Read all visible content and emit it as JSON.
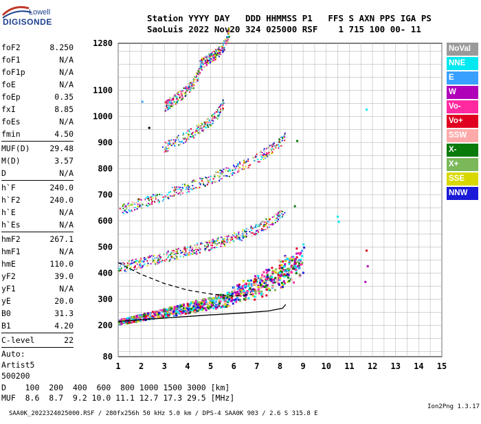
{
  "logo": {
    "line1": "Lowell",
    "line2": "DIGISONDE"
  },
  "header": {
    "line1": "Station YYYY DAY   DDD HHMMSS P1   FFS S AXN PPS IGA PS",
    "line2": "SaoLuis 2022 Nov20 324 025000 RSF    1 715 100 00- 11"
  },
  "params": [
    {
      "name": "foF2",
      "value": "8.250"
    },
    {
      "name": "foF1",
      "value": "N/A"
    },
    {
      "name": "foF1p",
      "value": "N/A"
    },
    {
      "name": "foE",
      "value": "N/A"
    },
    {
      "name": "foEp",
      "value": "0.35"
    },
    {
      "name": "fxI",
      "value": "8.85"
    },
    {
      "name": "foEs",
      "value": "N/A"
    },
    {
      "name": "fmin",
      "value": "4.50"
    },
    {
      "name": "MUF(D)",
      "value": "29.48"
    },
    {
      "name": "M(D)",
      "value": "3.57"
    },
    {
      "name": "D",
      "value": "N/A"
    },
    {
      "name": "h`F",
      "value": "240.0"
    },
    {
      "name": "h`F2",
      "value": "240.0"
    },
    {
      "name": "h`E",
      "value": "N/A"
    },
    {
      "name": "h`Es",
      "value": "N/A"
    },
    {
      "name": "hmF2",
      "value": "267.1"
    },
    {
      "name": "hmF1",
      "value": "N/A"
    },
    {
      "name": "hmE",
      "value": "110.0"
    },
    {
      "name": "yF2",
      "value": "39.0"
    },
    {
      "name": "yF1",
      "value": "N/A"
    },
    {
      "name": "yE",
      "value": "20.0"
    },
    {
      "name": "B0",
      "value": "31.3"
    },
    {
      "name": "B1",
      "value": "4.20"
    },
    {
      "name": "C-level",
      "value": "22"
    }
  ],
  "autoscaling": {
    "line1": "Auto:",
    "line2": "Artist5",
    "line3": "500200"
  },
  "footer": {
    "d_row": "D    100  200  400  600  800 1000 1500 3000 [km]",
    "muf_row": "MUF  8.6  8.7  9.2 10.0 11.1 12.7 17.3 29.5 [MHz]"
  },
  "bottom_line": "SAA0K_2022324025000.RSF / 280fx256h 50 kHz 5.0 km / DPS-4 SAA0K 903 / 2.6 S 315.8 E",
  "version": "Ion2Png 1.3.17",
  "legend": [
    {
      "label": "NoVal",
      "color": "#9a9a9a"
    },
    {
      "label": "NNE",
      "color": "#00e8f0"
    },
    {
      "label": "E",
      "color": "#3aa0ff"
    },
    {
      "label": "W",
      "color": "#b000b8"
    },
    {
      "label": "Vo-",
      "color": "#ff2aa0"
    },
    {
      "label": "Vo+",
      "color": "#e00020"
    },
    {
      "label": "SSW",
      "color": "#ffaaaa"
    },
    {
      "label": "X-",
      "color": "#0a7a0a"
    },
    {
      "label": "X+",
      "color": "#7ab85a"
    },
    {
      "label": "SSE",
      "color": "#d8d800"
    },
    {
      "label": "NNW",
      "color": "#1a1ad8"
    }
  ],
  "chart_data": {
    "type": "scatter",
    "xlim": [
      1,
      15
    ],
    "ylim": [
      80,
      1280
    ],
    "x_ticks": [
      "1",
      "2",
      "3",
      "4",
      "5",
      "6",
      "7",
      "8",
      "9",
      "10",
      "11",
      "12",
      "13",
      "14",
      "15"
    ],
    "y_ticks": [
      "80",
      "200",
      "300",
      "400",
      "500",
      "600",
      "700",
      "800",
      "900",
      "1000",
      "1100",
      "1280"
    ],
    "grid": true,
    "traces": [
      {
        "name": "O-trace (1st hop)",
        "x_start": 1.0,
        "x_end": 9.0,
        "y_start": 215,
        "y_end": 360
      },
      {
        "name": "2nd hop",
        "x_start": 1.0,
        "x_end": 8.2,
        "y_start": 420,
        "y_end": 580
      },
      {
        "name": "3rd hop",
        "x_start": 1.0,
        "x_end": 8.2,
        "y_start": 640,
        "y_end": 860
      },
      {
        "name": "4th hop",
        "x_start": 2.9,
        "x_end": 5.6,
        "y_start": 880,
        "y_end": 1000
      },
      {
        "name": "5th hop",
        "x_start": 3.0,
        "x_end": 4.6,
        "y_start": 1040,
        "y_end": 1140
      },
      {
        "name": "6th hop",
        "x_start": 4.5,
        "x_end": 5.8,
        "y_start": 1200,
        "y_end": 1270
      }
    ],
    "profile_lines": [
      {
        "style": "solid",
        "points": [
          [
            1.0,
            215
          ],
          [
            3,
            228
          ],
          [
            5,
            240
          ],
          [
            6.5,
            248
          ],
          [
            7.5,
            255
          ],
          [
            8.1,
            265
          ],
          [
            8.25,
            280
          ]
        ]
      },
      {
        "style": "dashed",
        "points": [
          [
            1.0,
            440
          ],
          [
            2,
            395
          ],
          [
            3,
            360
          ],
          [
            4,
            335
          ],
          [
            5,
            320
          ],
          [
            6,
            312
          ],
          [
            6.8,
            318
          ]
        ]
      }
    ]
  }
}
